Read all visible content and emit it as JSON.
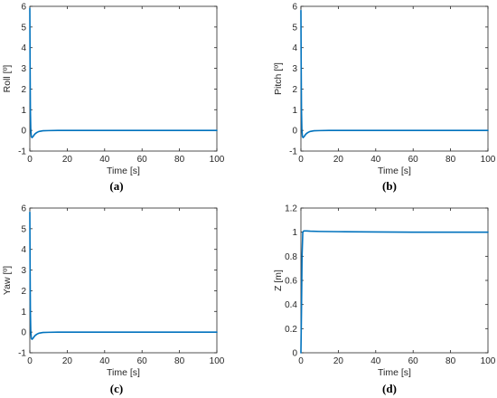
{
  "figure": {
    "colors": {
      "line": "#0072BD",
      "axis": "#262626",
      "background": "#ffffff"
    }
  },
  "chart_data": [
    {
      "id": "a",
      "caption": "(a)",
      "type": "line",
      "xlabel": "Time [s]",
      "ylabel": "Roll [º]",
      "xlim": [
        0,
        100
      ],
      "ylim": [
        -1,
        6
      ],
      "xticks": [
        0,
        20,
        40,
        60,
        80,
        100
      ],
      "yticks": [
        -1,
        0,
        1,
        2,
        3,
        4,
        5,
        6
      ],
      "grid": false,
      "series": [
        {
          "x": [
            0,
            0.15,
            0.3,
            0.5,
            0.8,
            1.2,
            1.7,
            2.3,
            3,
            4,
            5,
            7,
            10,
            15,
            20,
            30,
            50,
            100
          ],
          "y": [
            5.9,
            3.0,
            1.0,
            0.05,
            -0.3,
            -0.35,
            -0.3,
            -0.22,
            -0.15,
            -0.09,
            -0.05,
            -0.02,
            -0.01,
            0,
            0,
            0,
            0,
            0
          ]
        }
      ]
    },
    {
      "id": "b",
      "caption": "(b)",
      "type": "line",
      "xlabel": "Time [s]",
      "ylabel": "Pitch [º]",
      "xlim": [
        0,
        100
      ],
      "ylim": [
        -1,
        6
      ],
      "xticks": [
        0,
        20,
        40,
        60,
        80,
        100
      ],
      "yticks": [
        -1,
        0,
        1,
        2,
        3,
        4,
        5,
        6
      ],
      "grid": false,
      "series": [
        {
          "x": [
            0,
            0.15,
            0.3,
            0.5,
            0.8,
            1.2,
            1.7,
            2.3,
            3,
            4,
            5,
            7,
            10,
            15,
            20,
            30,
            50,
            100
          ],
          "y": [
            5.8,
            3.0,
            1.0,
            0.05,
            -0.3,
            -0.35,
            -0.3,
            -0.22,
            -0.15,
            -0.09,
            -0.05,
            -0.02,
            -0.01,
            0,
            0,
            0,
            0,
            0
          ]
        }
      ]
    },
    {
      "id": "c",
      "caption": "(c)",
      "type": "line",
      "xlabel": "Time [s]",
      "ylabel": "Yaw [º]",
      "xlim": [
        0,
        100
      ],
      "ylim": [
        -1,
        6
      ],
      "xticks": [
        0,
        20,
        40,
        60,
        80,
        100
      ],
      "yticks": [
        -1,
        0,
        1,
        2,
        3,
        4,
        5,
        6
      ],
      "grid": false,
      "series": [
        {
          "x": [
            0,
            0.15,
            0.3,
            0.5,
            0.8,
            1.2,
            1.7,
            2.3,
            3,
            4,
            5,
            7,
            10,
            15,
            20,
            30,
            50,
            100
          ],
          "y": [
            5.8,
            3.0,
            1.0,
            0.05,
            -0.3,
            -0.35,
            -0.3,
            -0.22,
            -0.15,
            -0.09,
            -0.05,
            -0.02,
            -0.01,
            0,
            0,
            0,
            0,
            0
          ]
        }
      ]
    },
    {
      "id": "d",
      "caption": "(d)",
      "type": "line",
      "xlabel": "Time [s]",
      "ylabel": "Z [m]",
      "xlim": [
        0,
        100
      ],
      "ylim": [
        0,
        1.2
      ],
      "xticks": [
        0,
        20,
        40,
        60,
        80,
        100
      ],
      "yticks": [
        0,
        0.2,
        0.4,
        0.6,
        0.8,
        1,
        1.2
      ],
      "grid": false,
      "series": [
        {
          "x": [
            0,
            0.3,
            0.6,
            1.0,
            1.5,
            2.0,
            3.0,
            5,
            10,
            20,
            40,
            60,
            100
          ],
          "y": [
            0,
            0.35,
            0.8,
            1.0,
            1.01,
            1.01,
            1.01,
            1.008,
            1.006,
            1.004,
            1.002,
            1.0,
            1.0
          ]
        }
      ]
    }
  ]
}
